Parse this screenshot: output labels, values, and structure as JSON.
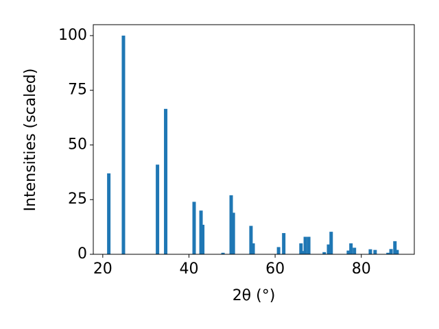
{
  "chart_data": {
    "type": "bar",
    "x_label": "2θ (°)",
    "y_label": "Intensities (scaled)",
    "x": [
      21.4,
      24.8,
      32.7,
      34.6,
      41.2,
      42.8,
      43.2,
      47.9,
      49.8,
      50.3,
      54.4,
      54.9,
      60.8,
      62.0,
      66.0,
      66.5,
      67.0,
      67.8,
      71.4,
      72.4,
      73.0,
      77.0,
      77.6,
      78.4,
      82.1,
      83.2,
      86.2,
      86.9,
      87.8,
      88.3
    ],
    "values": [
      37,
      100,
      41,
      66.5,
      24,
      20,
      13.5,
      0.7,
      27,
      19,
      13,
      5,
      3.3,
      9.7,
      5,
      1.5,
      8,
      8,
      1,
      4.5,
      10.3,
      1.7,
      5,
      3,
      2.3,
      2,
      0.7,
      2.4,
      6,
      2
    ],
    "color": "#1f77b4",
    "xlim": [
      17.8,
      92.3
    ],
    "xticks": [
      20,
      40,
      60,
      80
    ],
    "ylim": [
      0,
      105
    ],
    "yticks": [
      0,
      25,
      50,
      75,
      100
    ]
  }
}
